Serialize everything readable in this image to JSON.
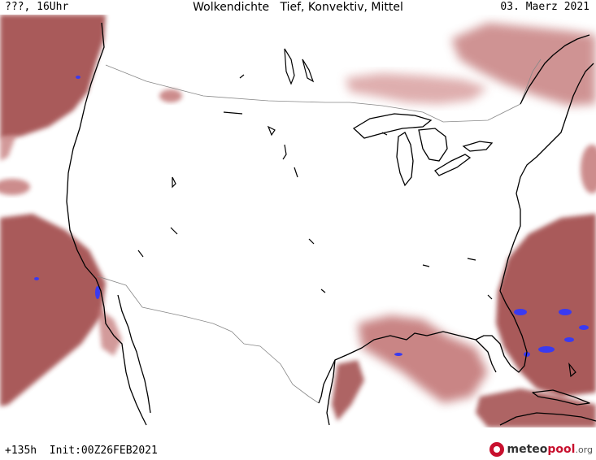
{
  "header": {
    "left": "???, 16Uhr",
    "title": "Wolkendichte   Tief, Konvektiv, Mittel",
    "date": "03. Maerz 2021"
  },
  "footer": {
    "run": "+135h  Init:00Z26FEB2021",
    "brand_meteo": "meteo",
    "brand_pool": "pool",
    "brand_tld": ".org"
  },
  "colors": {
    "cloud_dark": "#a04848",
    "cloud_mid": "#c07070",
    "cloud_light": "#d9a0a0",
    "convective": "#3a3af0",
    "coast": "#000000",
    "border": "#888888"
  }
}
